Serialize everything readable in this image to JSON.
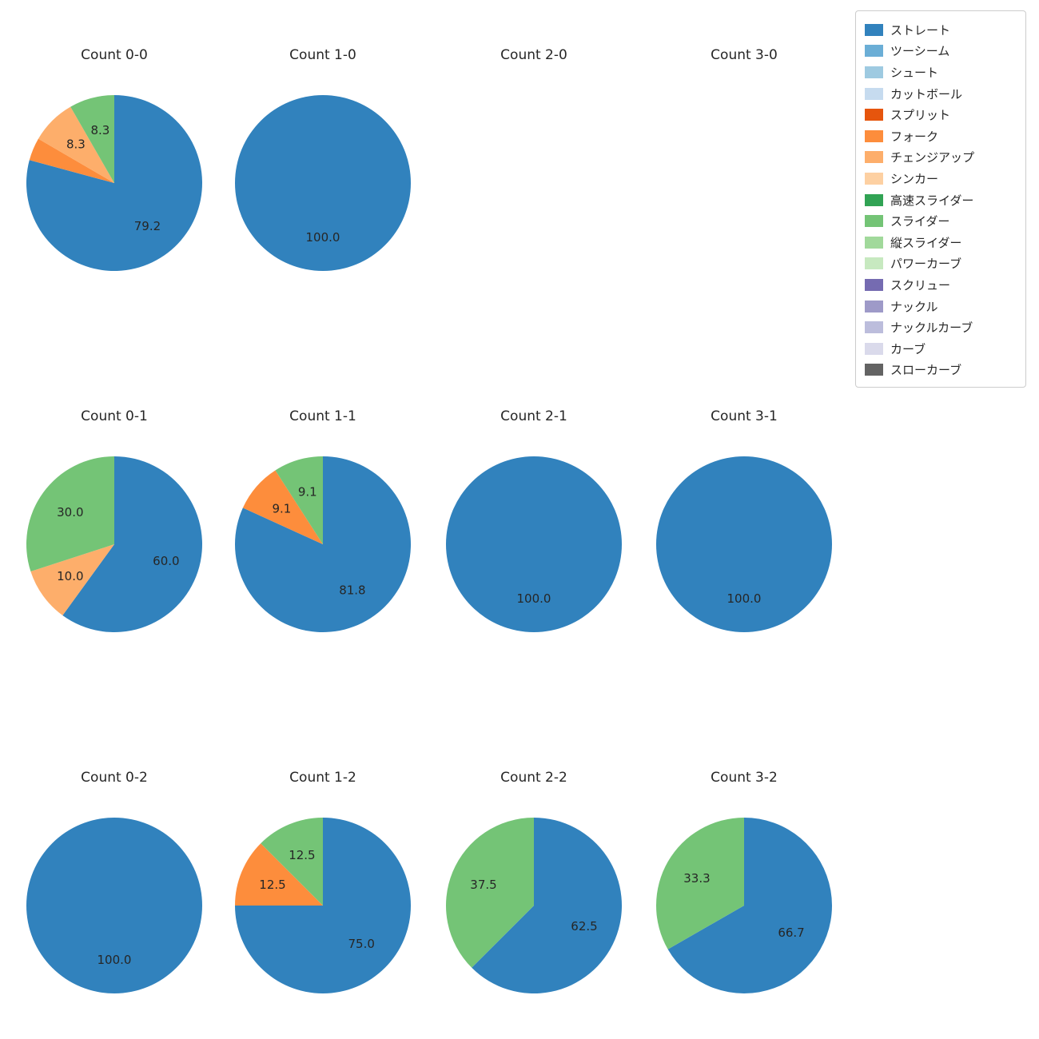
{
  "legend": {
    "items": [
      {
        "label": "ストレート",
        "color": "#3182bd"
      },
      {
        "label": "ツーシーム",
        "color": "#6baed6"
      },
      {
        "label": "シュート",
        "color": "#9ecae1"
      },
      {
        "label": "カットボール",
        "color": "#c6dbef"
      },
      {
        "label": "スプリット",
        "color": "#e6550d"
      },
      {
        "label": "フォーク",
        "color": "#fd8d3c"
      },
      {
        "label": "チェンジアップ",
        "color": "#fdae6b"
      },
      {
        "label": "シンカー",
        "color": "#fdd0a2"
      },
      {
        "label": "高速スライダー",
        "color": "#31a354"
      },
      {
        "label": "スライダー",
        "color": "#74c476"
      },
      {
        "label": "縦スライダー",
        "color": "#a1d99b"
      },
      {
        "label": "パワーカーブ",
        "color": "#c7e9c0"
      },
      {
        "label": "スクリュー",
        "color": "#756bb1"
      },
      {
        "label": "ナックル",
        "color": "#9e9ac8"
      },
      {
        "label": "ナックルカーブ",
        "color": "#bcbddc"
      },
      {
        "label": "カーブ",
        "color": "#dadaeb"
      },
      {
        "label": "スローカーブ",
        "color": "#636363"
      }
    ]
  },
  "chart_meta": {
    "grid": "3x4",
    "start_angle": "top",
    "direction": "clockwise",
    "autopct_min_pct": 5,
    "autopct_format": "one_decimal",
    "label_radius_ratio": 0.62,
    "legend_position": "upper right"
  },
  "chart_data": [
    {
      "type": "pie",
      "title": "Count 0-0",
      "slices": [
        {
          "pitch": "ストレート",
          "pct": 79.2
        },
        {
          "pitch": "フォーク",
          "pct": 4.2
        },
        {
          "pitch": "チェンジアップ",
          "pct": 8.3
        },
        {
          "pitch": "スライダー",
          "pct": 8.3
        }
      ]
    },
    {
      "type": "pie",
      "title": "Count 1-0",
      "slices": [
        {
          "pitch": "ストレート",
          "pct": 100.0
        }
      ]
    },
    {
      "type": "pie",
      "title": "Count 2-0",
      "slices": []
    },
    {
      "type": "pie",
      "title": "Count 3-0",
      "slices": []
    },
    {
      "type": "pie",
      "title": "Count 0-1",
      "slices": [
        {
          "pitch": "ストレート",
          "pct": 60.0
        },
        {
          "pitch": "チェンジアップ",
          "pct": 10.0
        },
        {
          "pitch": "スライダー",
          "pct": 30.0
        }
      ]
    },
    {
      "type": "pie",
      "title": "Count 1-1",
      "slices": [
        {
          "pitch": "ストレート",
          "pct": 81.8
        },
        {
          "pitch": "フォーク",
          "pct": 9.1
        },
        {
          "pitch": "スライダー",
          "pct": 9.1
        }
      ]
    },
    {
      "type": "pie",
      "title": "Count 2-1",
      "slices": [
        {
          "pitch": "ストレート",
          "pct": 100.0
        }
      ]
    },
    {
      "type": "pie",
      "title": "Count 3-1",
      "slices": [
        {
          "pitch": "ストレート",
          "pct": 100.0
        }
      ]
    },
    {
      "type": "pie",
      "title": "Count 0-2",
      "slices": [
        {
          "pitch": "ストレート",
          "pct": 100.0
        }
      ]
    },
    {
      "type": "pie",
      "title": "Count 1-2",
      "slices": [
        {
          "pitch": "ストレート",
          "pct": 75.0
        },
        {
          "pitch": "フォーク",
          "pct": 12.5
        },
        {
          "pitch": "スライダー",
          "pct": 12.5
        }
      ]
    },
    {
      "type": "pie",
      "title": "Count 2-2",
      "slices": [
        {
          "pitch": "ストレート",
          "pct": 62.5
        },
        {
          "pitch": "スライダー",
          "pct": 37.5
        }
      ]
    },
    {
      "type": "pie",
      "title": "Count 3-2",
      "slices": [
        {
          "pitch": "ストレート",
          "pct": 66.7
        },
        {
          "pitch": "スライダー",
          "pct": 33.3
        }
      ]
    }
  ]
}
